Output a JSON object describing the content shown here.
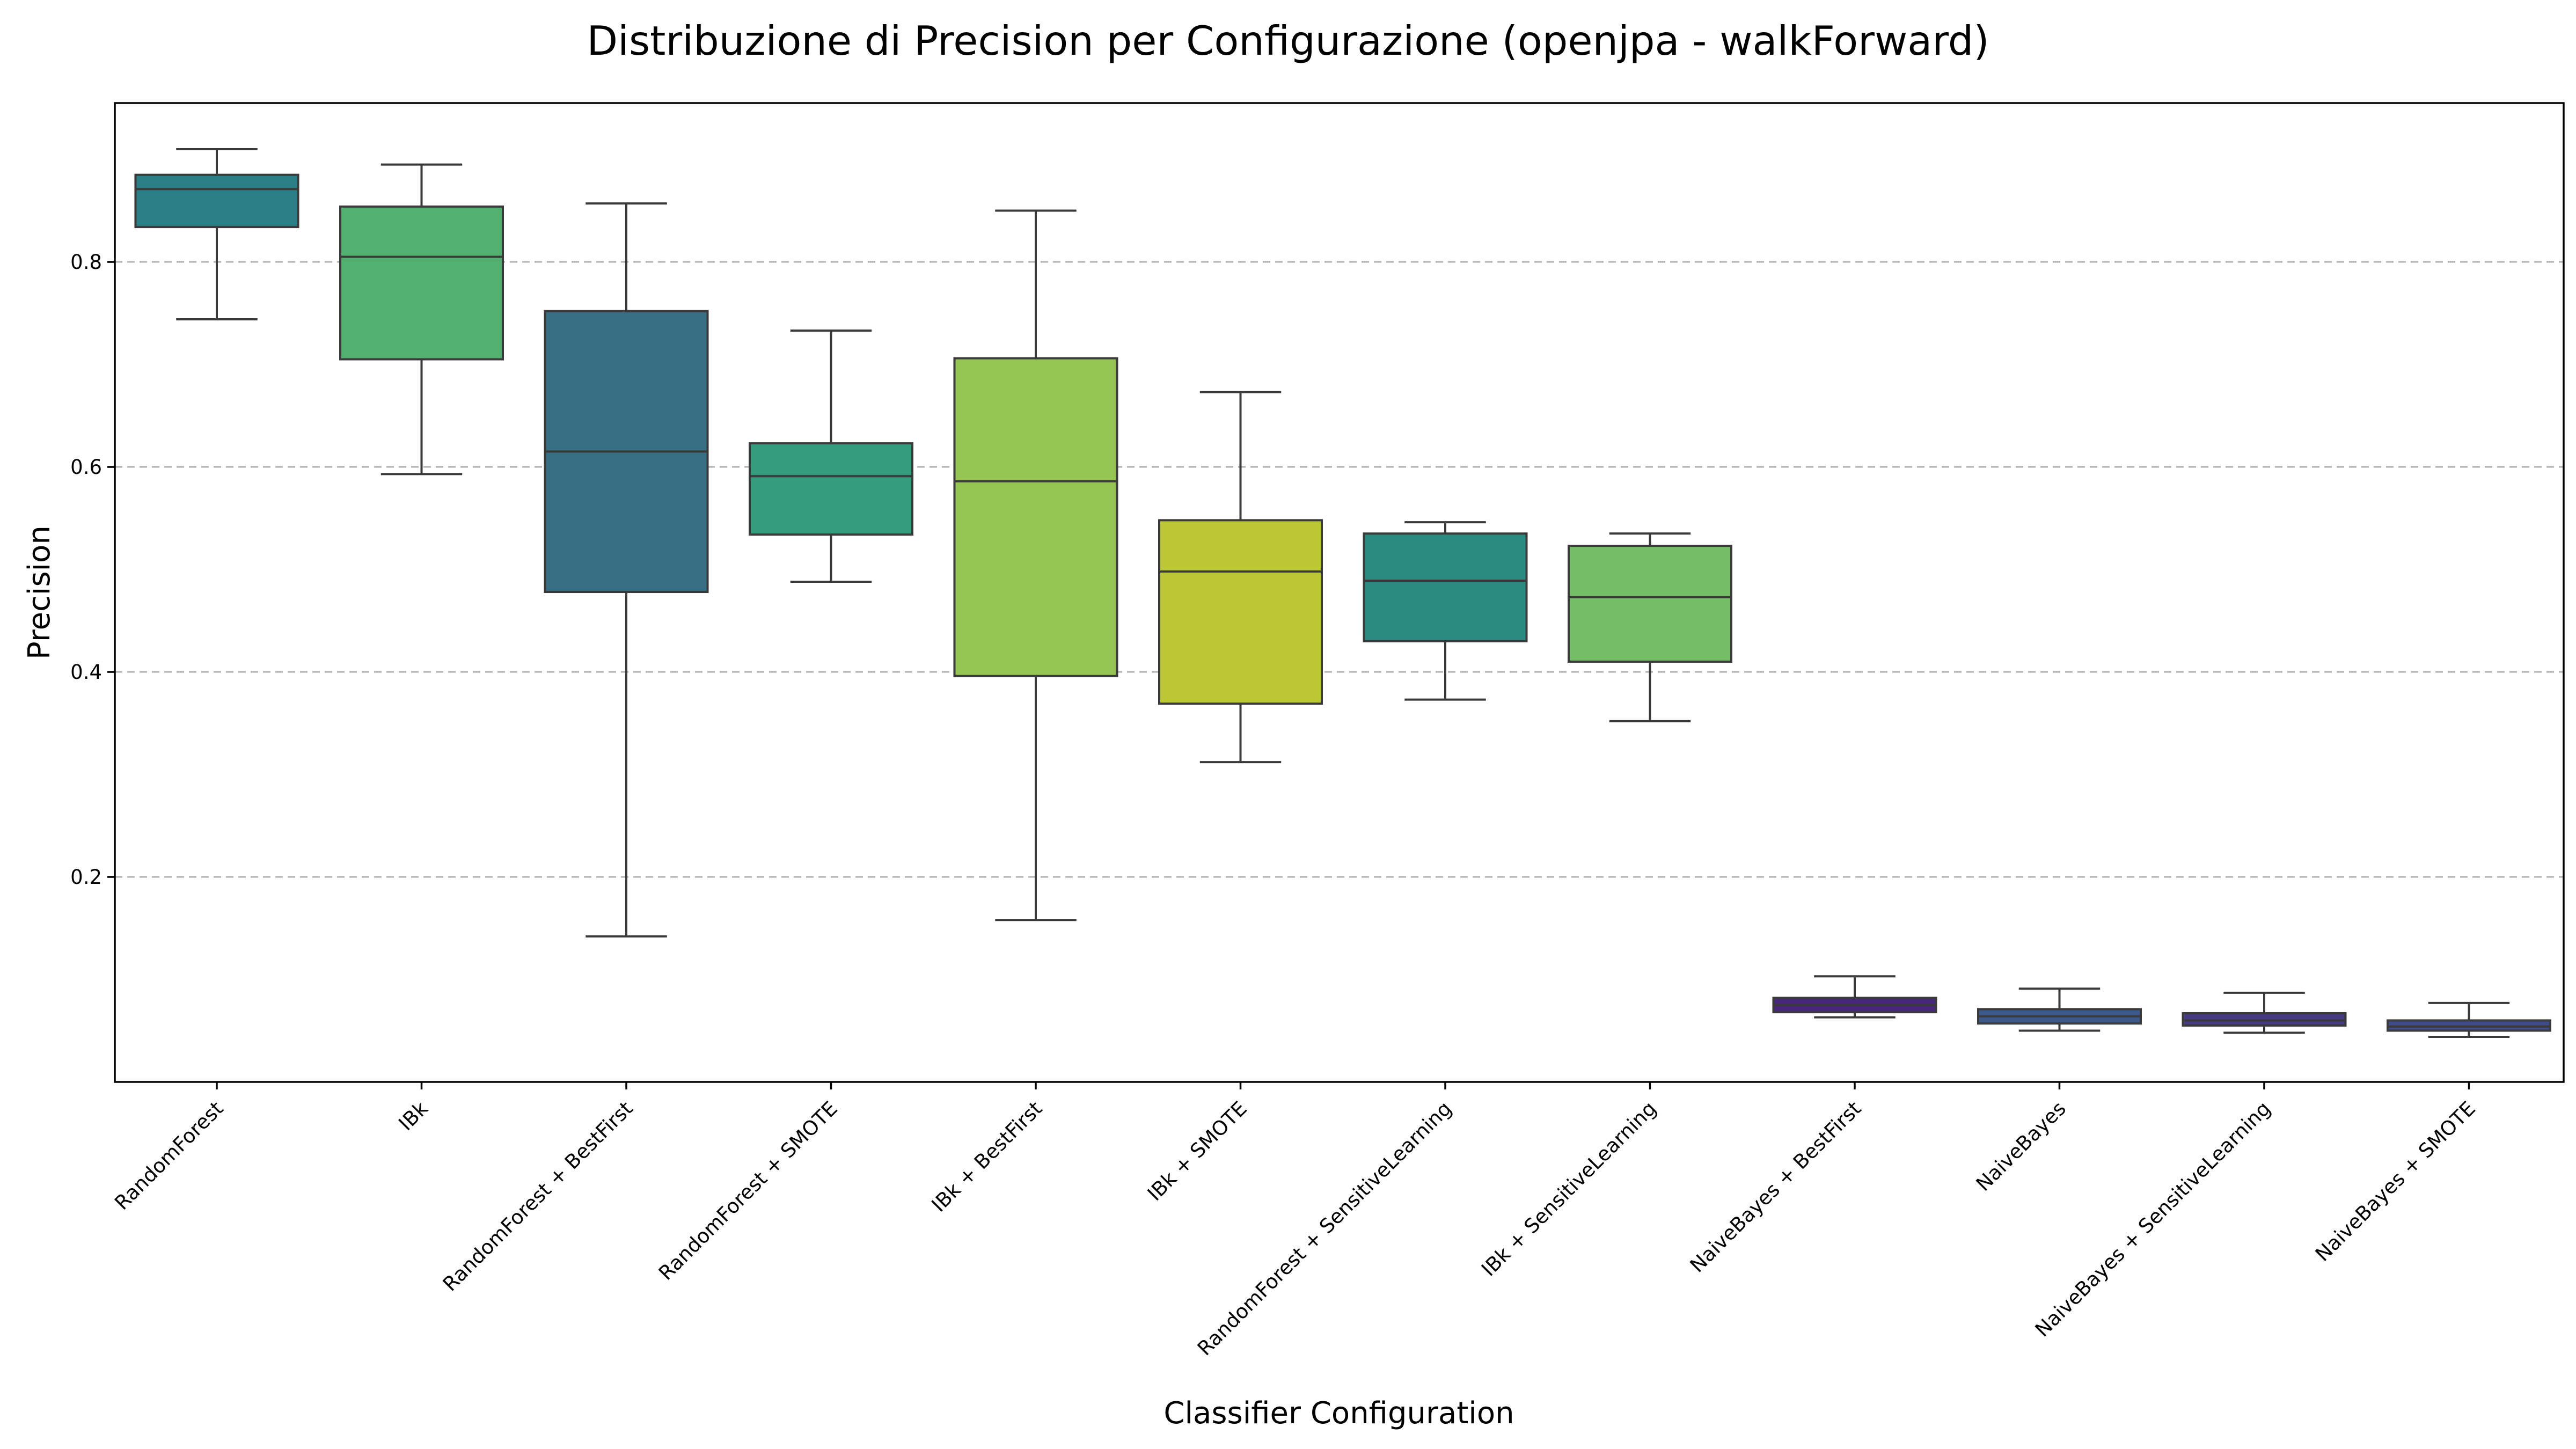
{
  "chart_data": {
    "type": "boxplot",
    "title": "Distribuzione di Precision per Configurazione (openjpa - walkForward)",
    "xlabel": "Classifier Configuration",
    "ylabel": "Precision",
    "ylim": [
      0.0,
      0.955
    ],
    "yticks": [
      0.2,
      0.4,
      0.6,
      0.8
    ],
    "ytick_labels": [
      "0.2",
      "0.4",
      "0.6",
      "0.8"
    ],
    "grid": "y-dashed",
    "categories": [
      "RandomForest",
      "IBk",
      "RandomForest + BestFirst",
      "RandomForest + SMOTE",
      "IBk + BestFirst",
      "IBk + SMOTE",
      "RandomForest + SensitiveLearning",
      "IBk + SensitiveLearning",
      "NaiveBayes + BestFirst",
      "NaiveBayes",
      "NaiveBayes + SensitiveLearning",
      "NaiveBayes + SMOTE"
    ],
    "boxes": [
      {
        "min": 0.744,
        "q1": 0.834,
        "median": 0.871,
        "q3": 0.885,
        "max": 0.91,
        "color": "#2a7f86"
      },
      {
        "min": 0.593,
        "q1": 0.705,
        "median": 0.805,
        "q3": 0.854,
        "max": 0.895,
        "color": "#52b170"
      },
      {
        "min": 0.142,
        "q1": 0.478,
        "median": 0.615,
        "q3": 0.752,
        "max": 0.857,
        "color": "#366f83"
      },
      {
        "min": 0.488,
        "q1": 0.534,
        "median": 0.591,
        "q3": 0.623,
        "max": 0.733,
        "color": "#359c7d"
      },
      {
        "min": 0.158,
        "q1": 0.396,
        "median": 0.586,
        "q3": 0.706,
        "max": 0.85,
        "color": "#96c553"
      },
      {
        "min": 0.312,
        "q1": 0.369,
        "median": 0.498,
        "q3": 0.548,
        "max": 0.673,
        "color": "#bbc834"
      },
      {
        "min": 0.373,
        "q1": 0.43,
        "median": 0.489,
        "q3": 0.535,
        "max": 0.546,
        "color": "#2b8b82"
      },
      {
        "min": 0.352,
        "q1": 0.41,
        "median": 0.473,
        "q3": 0.523,
        "max": 0.535,
        "color": "#73be66"
      },
      {
        "min": 0.063,
        "q1": 0.068,
        "median": 0.075,
        "q3": 0.082,
        "max": 0.103,
        "color": "#46267a"
      },
      {
        "min": 0.05,
        "q1": 0.057,
        "median": 0.064,
        "q3": 0.071,
        "max": 0.091,
        "color": "#3d588a"
      },
      {
        "min": 0.048,
        "q1": 0.055,
        "median": 0.06,
        "q3": 0.067,
        "max": 0.087,
        "color": "#463b83"
      },
      {
        "min": 0.044,
        "q1": 0.05,
        "median": 0.054,
        "q3": 0.06,
        "max": 0.077,
        "color": "#3e4d8a"
      }
    ]
  }
}
